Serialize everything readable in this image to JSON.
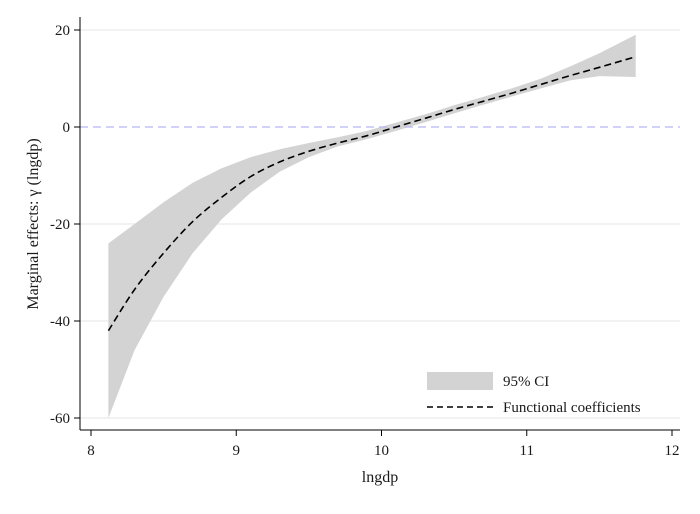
{
  "chart_data": {
    "type": "line",
    "title": "",
    "xlabel": "lngdp",
    "ylabel": "Marginal effects: γ (lngdp)",
    "xlim": [
      8,
      12
    ],
    "ylim": [
      -60,
      20
    ],
    "xticks": [
      8,
      9,
      10,
      11,
      12
    ],
    "yticks": [
      -60,
      -40,
      -20,
      0,
      20
    ],
    "xtick_labels": [
      "8",
      "9",
      "10",
      "11",
      "12"
    ],
    "ytick_labels": [
      "-60",
      "-40",
      "-20",
      "0",
      "20"
    ],
    "grid": true,
    "reference_line": {
      "y": 0,
      "style": "dashed",
      "color": "#b8b8f0"
    },
    "legend": {
      "position": "bottom-right",
      "entries": [
        {
          "label": "95% CI",
          "kind": "band"
        },
        {
          "label": "Functional coefficients",
          "kind": "dashed-line"
        }
      ]
    },
    "series": [
      {
        "name": "Functional coefficients",
        "style": "dashed",
        "color": "#000000",
        "x": [
          8.12,
          8.3,
          8.5,
          8.7,
          8.9,
          9.1,
          9.3,
          9.5,
          9.7,
          9.9,
          10.1,
          10.3,
          10.5,
          10.7,
          10.9,
          11.1,
          11.3,
          11.5,
          11.75
        ],
        "y": [
          -42,
          -33.5,
          -26,
          -19.5,
          -14.5,
          -10.2,
          -7.2,
          -5.0,
          -3.3,
          -1.8,
          0,
          1.8,
          3.6,
          5.3,
          7.0,
          8.8,
          10.6,
          12.3,
          14.5
        ]
      },
      {
        "name": "95% CI",
        "style": "band",
        "color": "#d3d3d3",
        "x": [
          8.12,
          8.3,
          8.5,
          8.7,
          8.9,
          9.1,
          9.3,
          9.5,
          9.7,
          9.9,
          10.1,
          10.3,
          10.5,
          10.7,
          10.9,
          11.1,
          11.3,
          11.5,
          11.75
        ],
        "lower": [
          -60,
          -46,
          -35,
          -26,
          -19,
          -13.5,
          -9.2,
          -6.2,
          -4.0,
          -2.5,
          -0.8,
          1.0,
          2.8,
          4.6,
          6.3,
          8.0,
          9.6,
          10.5,
          10.3
        ],
        "upper": [
          -24,
          -20,
          -15.5,
          -11.5,
          -8.5,
          -6.2,
          -4.6,
          -3.3,
          -2.1,
          -0.8,
          0.9,
          2.6,
          4.5,
          6.2,
          8.0,
          10.0,
          12.5,
          15.2,
          19
        ]
      }
    ]
  }
}
